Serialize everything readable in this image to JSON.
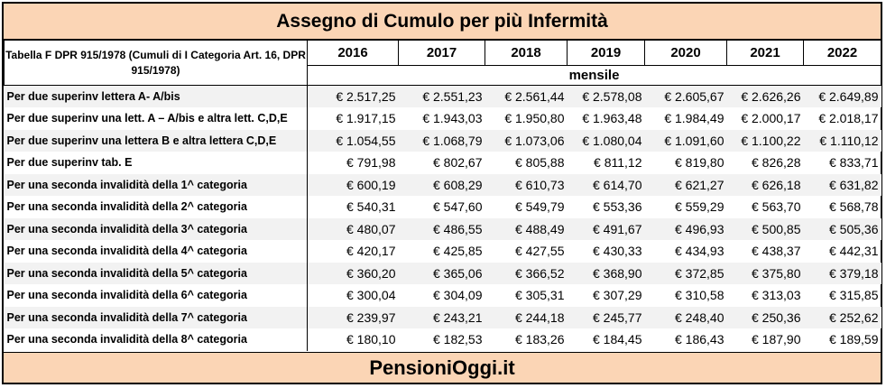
{
  "title": "Assegno di Cumulo per più Infermità",
  "header": {
    "description": "Tabella F DPR 915/1978 (Cumuli di I Categoria Art. 16, DPR 915/1978)",
    "years": [
      "2016",
      "2017",
      "2018",
      "2019",
      "2020",
      "2021",
      "2022"
    ],
    "unit": "mensile"
  },
  "rows": [
    {
      "label": "Per due superinv  lettera A- A/bis",
      "values": [
        "€ 2.517,25",
        "€ 2.551,23",
        "€ 2.561,44",
        "€ 2.578,08",
        "€ 2.605,67",
        "€ 2.626,26",
        "€ 2.649,89"
      ]
    },
    {
      "label": "Per due superinv  una lett. A – A/bis e altra lett. C,D,E",
      "values": [
        "€ 1.917,15",
        "€ 1.943,03",
        "€ 1.950,80",
        "€ 1.963,48",
        "€ 1.984,49",
        "€ 2.000,17",
        "€ 2.018,17"
      ]
    },
    {
      "label": "Per due superinv una lettera B e altra lettera C,D,E",
      "values": [
        "€ 1.054,55",
        "€ 1.068,79",
        "€ 1.073,06",
        "€ 1.080,04",
        "€ 1.091,60",
        "€ 1.100,22",
        "€ 1.110,12"
      ]
    },
    {
      "label": "Per due superinv tab. E",
      "values": [
        "€ 791,98",
        "€ 802,67",
        "€ 805,88",
        "€ 811,12",
        "€ 819,80",
        "€ 826,28",
        "€ 833,71"
      ]
    },
    {
      "label": "Per una seconda invalidità della 1^ categoria",
      "values": [
        "€ 600,19",
        "€ 608,29",
        "€ 610,73",
        "€ 614,70",
        "€ 621,27",
        "€ 626,18",
        "€ 631,82"
      ]
    },
    {
      "label": "Per una seconda invalidità della 2^ categoria",
      "values": [
        "€ 540,31",
        "€ 547,60",
        "€ 549,79",
        "€ 553,36",
        "€ 559,29",
        "€ 563,70",
        "€ 568,78"
      ]
    },
    {
      "label": "Per una seconda invalidità della 3^ categoria",
      "values": [
        "€ 480,07",
        "€ 486,55",
        "€ 488,49",
        "€ 491,67",
        "€ 496,93",
        "€ 500,85",
        "€ 505,36"
      ]
    },
    {
      "label": "Per una seconda invalidità della 4^ categoria",
      "values": [
        "€ 420,17",
        "€ 425,85",
        "€ 427,55",
        "€ 430,33",
        "€ 434,93",
        "€ 438,37",
        "€ 442,31"
      ]
    },
    {
      "label": "Per una seconda invalidità della 5^ categoria",
      "values": [
        "€ 360,20",
        "€ 365,06",
        "€ 366,52",
        "€ 368,90",
        "€ 372,85",
        "€ 375,80",
        "€ 379,18"
      ]
    },
    {
      "label": "Per una seconda invalidità della 6^ categoria",
      "values": [
        "€ 300,04",
        "€ 304,09",
        "€ 305,31",
        "€ 307,29",
        "€ 310,58",
        "€ 313,03",
        "€ 315,85"
      ]
    },
    {
      "label": "Per una seconda invalidità della 7^ categoria",
      "values": [
        "€ 239,97",
        "€ 243,21",
        "€ 244,18",
        "€ 245,77",
        "€ 248,40",
        "€ 250,36",
        "€ 252,62"
      ]
    },
    {
      "label": "Per una seconda invalidità della 8^ categoria",
      "values": [
        "€ 180,10",
        "€ 182,53",
        "€ 183,26",
        "€ 184,45",
        "€ 186,43",
        "€ 187,90",
        "€ 189,59"
      ]
    }
  ],
  "footer": "PensioniOggi.it",
  "colors": {
    "band": "#fbd5b5",
    "shade": "#f2f2f2",
    "border": "#000000"
  }
}
